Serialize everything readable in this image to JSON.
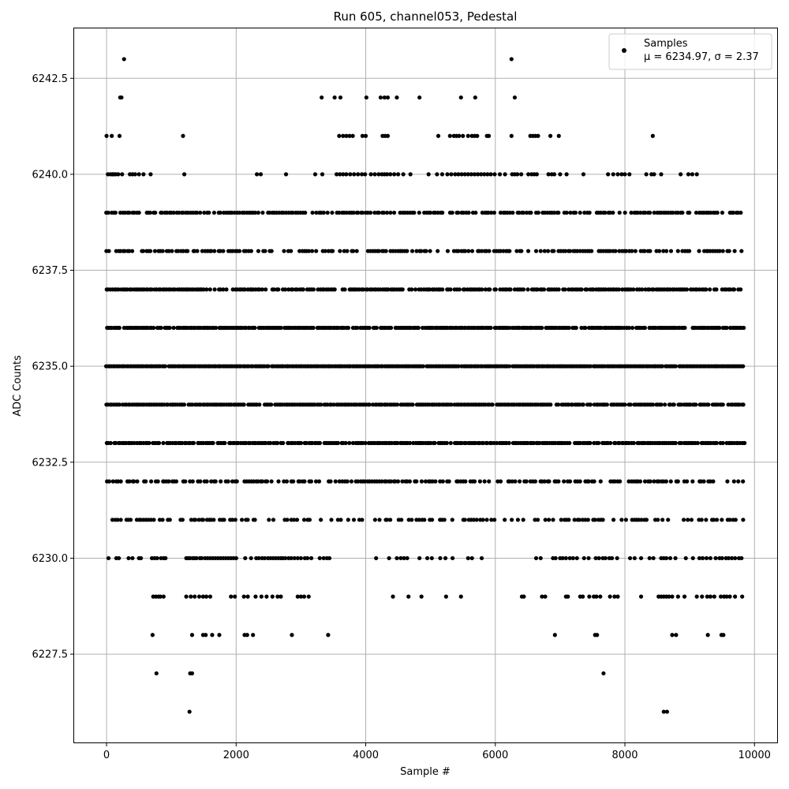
{
  "chart_data": {
    "type": "scatter",
    "title": "Run 605, channel053, Pedestal",
    "xlabel": "Sample #",
    "ylabel": "ADC Counts",
    "xlim": [
      -500,
      10350
    ],
    "ylim": [
      6225.2,
      6243.8
    ],
    "x_ticks": [
      0,
      2000,
      4000,
      6000,
      8000,
      10000
    ],
    "y_ticks": [
      6227.5,
      6230.0,
      6232.5,
      6235.0,
      6237.5,
      6240.0,
      6242.5
    ],
    "x_tick_labels": [
      "0",
      "2000",
      "4000",
      "6000",
      "8000",
      "10000"
    ],
    "y_tick_labels": [
      "6227.5",
      "6230.0",
      "6232.5",
      "6235.0",
      "6237.5",
      "6240.0",
      "6242.5"
    ],
    "grid": true,
    "legend_position": "top-right",
    "marker_color": "#000000",
    "series": [
      {
        "name": "Samples",
        "stats_label": "μ = 6234.97, σ = 2.37",
        "points_by_level": [
          {
            "y": 6243,
            "x": [
              270,
              6250
            ]
          },
          {
            "y": 6242,
            "x": [
              210,
              230,
              3320,
              3520,
              3610,
              4010,
              4230,
              4290,
              4340,
              4480,
              4830,
              5470,
              5690,
              6300
            ]
          },
          {
            "y": 6241,
            "x": [
              0,
              80,
              200,
              1180,
              3590,
              3650,
              3700,
              3750,
              3800,
              3950,
              4000,
              4260,
              4300,
              4340,
              5120,
              5300,
              5360,
              5400,
              5440,
              5500,
              5580,
              5640,
              5680,
              5720,
              5870,
              5900,
              6250,
              6540,
              6580,
              6620,
              6660,
              6850,
              6980,
              8430
            ]
          },
          {
            "y": 6240,
            "x": [
              20,
              60,
              90,
              110,
              140,
              180,
              240,
              360,
              400,
              440,
              500,
              570,
              680,
              1200,
              2320,
              2380,
              2770,
              3220,
              3330,
              3550,
              3600,
              3650,
              3700,
              3760,
              3820,
              3880,
              3940,
              3990,
              4080,
              4140,
              4200,
              4250,
              4290,
              4330,
              4380,
              4440,
              4500,
              4580,
              4690,
              4970,
              5100,
              5180,
              5260,
              5320,
              5380,
              5430,
              5480,
              5530,
              5580,
              5630,
              5680,
              5730,
              5780,
              5830,
              5880,
              5930,
              5990,
              6070,
              6150,
              6260,
              6300,
              6340,
              6400,
              6510,
              6560,
              6600,
              6640,
              6820,
              6870,
              6910,
              7000,
              7100,
              7360,
              7740,
              7820,
              7890,
              7950,
              8000,
              8070,
              8330,
              8410,
              8450,
              8560,
              8860,
              8980,
              9040,
              9110
            ]
          },
          {
            "y": 6239,
            "step": 36,
            "from": 0,
            "to": 9820,
            "density": 0.78,
            "seed": 11
          },
          {
            "y": 6238,
            "step": 36,
            "from": 0,
            "to": 9800,
            "density": 0.68,
            "seed": 23
          },
          {
            "y": 6237,
            "step": 32,
            "from": 0,
            "to": 9820,
            "density": 0.85,
            "seed": 37
          },
          {
            "y": 6236,
            "step": 28,
            "from": 0,
            "to": 9840,
            "density": 0.92,
            "seed": 41
          },
          {
            "y": 6235,
            "step": 26,
            "from": 0,
            "to": 9840,
            "density": 0.97,
            "seed": 53
          },
          {
            "y": 6234,
            "step": 28,
            "from": 0,
            "to": 9840,
            "density": 0.92,
            "seed": 67
          },
          {
            "y": 6233,
            "step": 30,
            "from": 0,
            "to": 9840,
            "density": 0.88,
            "seed": 71
          },
          {
            "y": 6232,
            "step": 36,
            "from": 0,
            "to": 9840,
            "density": 0.7,
            "seed": 83
          },
          {
            "y": 6231,
            "step": 40,
            "from": 100,
            "to": 9840,
            "density": 0.58,
            "seed": 97
          },
          {
            "y": 6230,
            "x": [
              30,
              150,
              190,
              340,
              400,
              500,
              530,
              700,
              740,
              780,
              840,
              880,
              910,
              1230,
              1260,
              1290,
              1330,
              1360,
              1390,
              1440,
              1470,
              1520,
              1560,
              1600,
              1640,
              1680,
              1720,
              1760,
              1800,
              1840,
              1880,
              1920,
              1960,
              2000,
              2140,
              2230,
              2310,
              2350,
              2400,
              2440,
              2490,
              2530,
              2570,
              2610,
              2650,
              2690,
              2720,
              2760,
              2810,
              2850,
              2900,
              2950,
              3000,
              3060,
              3100,
              3160,
              3290,
              3350,
              3400,
              3440,
              4160,
              4360,
              4480,
              4540,
              4590,
              4640,
              4830,
              4950,
              5020,
              5150,
              5230,
              5340,
              5580,
              5640,
              5790,
              6630,
              6700,
              6890,
              6930,
              7000,
              7040,
              7090,
              7150,
              7200,
              7260,
              7370,
              7440,
              7550,
              7600,
              7660,
              7700,
              7760,
              7800,
              7880,
              8080,
              8150,
              8250,
              8380,
              8440,
              8560,
              8600,
              8640,
              8700,
              8780,
              8940,
              9050,
              9150,
              9200,
              9260,
              9320,
              9400,
              9460,
              9500,
              9560,
              9600,
              9650,
              9700,
              9760,
              9800
            ]
          },
          {
            "y": 6229,
            "x": [
              720,
              760,
              800,
              830,
              880,
              1230,
              1300,
              1360,
              1430,
              1490,
              1540,
              1600,
              1920,
              1980,
              2120,
              2180,
              2300,
              2390,
              2470,
              2560,
              2640,
              2690,
              2950,
              3000,
              3050,
              3120,
              4420,
              4660,
              4860,
              5240,
              5470,
              6410,
              6440,
              6720,
              6770,
              7090,
              7120,
              7310,
              7350,
              7450,
              7520,
              7560,
              7620,
              7770,
              7840,
              7890,
              8250,
              8520,
              8560,
              8600,
              8640,
              8680,
              8730,
              8820,
              8920,
              9110,
              9190,
              9270,
              9320,
              9380,
              9480,
              9530,
              9570,
              9620,
              9700,
              9810
            ]
          },
          {
            "y": 6228,
            "x": [
              710,
              1320,
              1490,
              1530,
              1630,
              1740,
              2130,
              2170,
              2260,
              2860,
              3420,
              6920,
              7540,
              7570,
              8730,
              8790,
              9280,
              9490,
              9520
            ]
          },
          {
            "y": 6227,
            "x": [
              770,
              1290,
              1320,
              7670
            ]
          },
          {
            "y": 6226,
            "x": [
              1280,
              8600,
              8650
            ]
          }
        ]
      }
    ]
  }
}
